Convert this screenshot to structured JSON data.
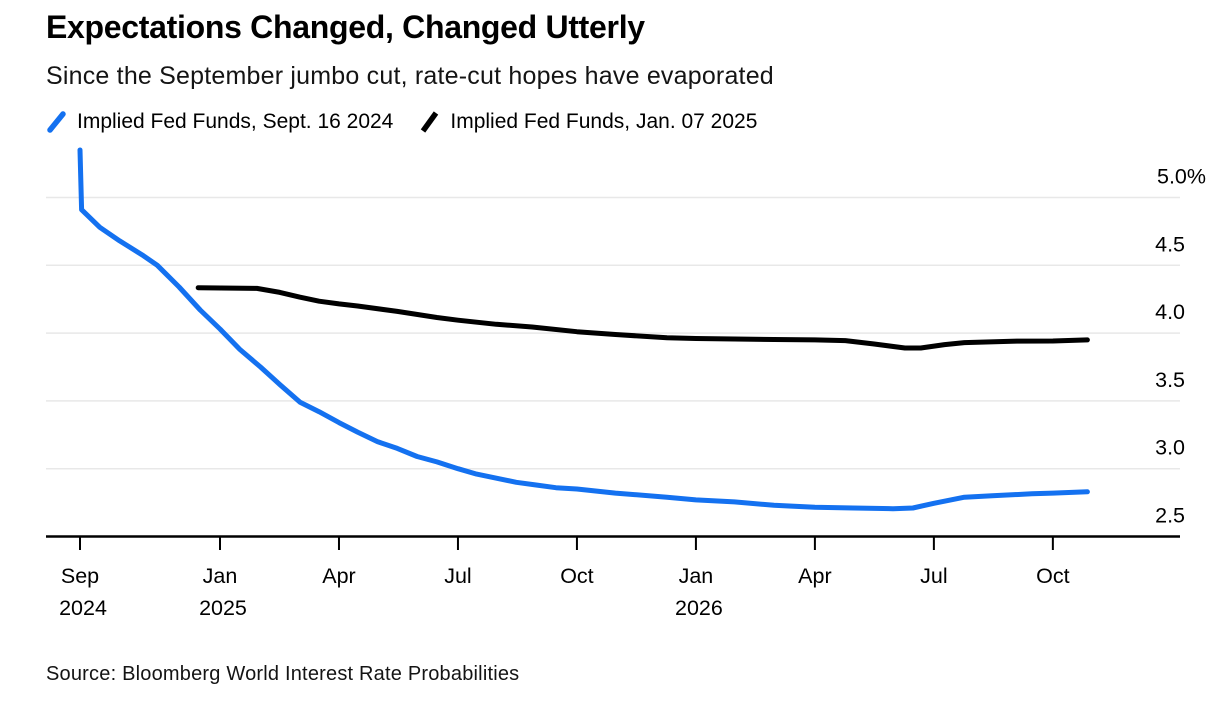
{
  "header": {
    "title": "Expectations Changed, Changed Utterly",
    "subtitle": "Since the September jumbo cut, rate-cut hopes have evaporated"
  },
  "legend": [
    {
      "label": "Implied Fed Funds, Sept. 16 2024",
      "color": "#1471F0"
    },
    {
      "label": "Implied Fed Funds, Jan. 07 2025",
      "color": "#000000"
    }
  ],
  "footer": {
    "source": "Source: Bloomberg World Interest Rate Probabilities"
  },
  "chart_data": {
    "type": "line",
    "title": "Expectations Changed, Changed Utterly",
    "subtitle": "Since the September jumbo cut, rate-cut hopes have evaporated",
    "unit": "%",
    "grid": "horizontal",
    "legend_position": "top",
    "ylim": [
      2.5,
      5.42
    ],
    "x_unit": "months since 2024-09-16",
    "xlim": [
      0,
      27.7
    ],
    "colors": {
      "series1": "#1471F0",
      "series2": "#000000",
      "gridline": "#E8E8E8",
      "axis": "#000000"
    },
    "y_ticks": [
      {
        "v": 5.0,
        "label": "5.0%"
      },
      {
        "v": 4.5,
        "label": "4.5"
      },
      {
        "v": 4.0,
        "label": "4.0"
      },
      {
        "v": 3.5,
        "label": "3.5"
      },
      {
        "v": 3.0,
        "label": "3.0"
      },
      {
        "v": 2.5,
        "label": "2.5"
      }
    ],
    "x_ticks": [
      {
        "t": 0.0,
        "label": "Sep",
        "year": "2024"
      },
      {
        "t": 3.53,
        "label": "Jan",
        "year": "2025"
      },
      {
        "t": 6.53,
        "label": "Apr"
      },
      {
        "t": 9.53,
        "label": "Jul"
      },
      {
        "t": 12.53,
        "label": "Oct"
      },
      {
        "t": 15.53,
        "label": "Jan",
        "year": "2026"
      },
      {
        "t": 18.53,
        "label": "Apr"
      },
      {
        "t": 21.53,
        "label": "Jul"
      },
      {
        "t": 24.53,
        "label": "Oct"
      }
    ],
    "series": [
      {
        "name": "Implied Fed Funds, Sept. 16 2024",
        "color": "#1471F0",
        "points": [
          [
            0.0,
            5.35
          ],
          [
            0.04,
            4.91
          ],
          [
            0.5,
            4.78
          ],
          [
            1.0,
            4.68
          ],
          [
            1.6,
            4.57
          ],
          [
            1.95,
            4.5
          ],
          [
            2.5,
            4.34
          ],
          [
            3.03,
            4.17
          ],
          [
            3.53,
            4.03
          ],
          [
            4.03,
            3.88
          ],
          [
            4.55,
            3.75
          ],
          [
            5.04,
            3.62
          ],
          [
            5.55,
            3.49
          ],
          [
            6.03,
            3.42
          ],
          [
            6.53,
            3.34
          ],
          [
            7.0,
            3.27
          ],
          [
            7.5,
            3.2
          ],
          [
            8.0,
            3.15
          ],
          [
            8.5,
            3.09
          ],
          [
            9.0,
            3.05
          ],
          [
            9.53,
            3.0
          ],
          [
            10.0,
            2.96
          ],
          [
            10.5,
            2.93
          ],
          [
            11.0,
            2.9
          ],
          [
            11.5,
            2.88
          ],
          [
            12.0,
            2.86
          ],
          [
            12.53,
            2.85
          ],
          [
            13.5,
            2.82
          ],
          [
            14.8,
            2.79
          ],
          [
            15.53,
            2.77
          ],
          [
            16.5,
            2.755
          ],
          [
            17.5,
            2.73
          ],
          [
            18.53,
            2.715
          ],
          [
            19.5,
            2.71
          ],
          [
            20.5,
            2.705
          ],
          [
            21.0,
            2.71
          ],
          [
            21.53,
            2.745
          ],
          [
            22.3,
            2.79
          ],
          [
            23.0,
            2.8
          ],
          [
            24.0,
            2.815
          ],
          [
            24.53,
            2.82
          ],
          [
            25.4,
            2.83
          ]
        ]
      },
      {
        "name": "Implied Fed Funds, Jan. 07 2025",
        "color": "#000000",
        "points": [
          [
            2.98,
            4.335
          ],
          [
            4.46,
            4.33
          ],
          [
            5.04,
            4.3
          ],
          [
            5.55,
            4.265
          ],
          [
            6.03,
            4.235
          ],
          [
            6.53,
            4.215
          ],
          [
            7.0,
            4.2
          ],
          [
            8.0,
            4.16
          ],
          [
            9.0,
            4.115
          ],
          [
            9.53,
            4.095
          ],
          [
            10.5,
            4.065
          ],
          [
            11.4,
            4.045
          ],
          [
            12.53,
            4.01
          ],
          [
            13.5,
            3.99
          ],
          [
            14.8,
            3.965
          ],
          [
            15.53,
            3.96
          ],
          [
            17.5,
            3.953
          ],
          [
            18.53,
            3.95
          ],
          [
            19.3,
            3.945
          ],
          [
            20.0,
            3.92
          ],
          [
            20.8,
            3.89
          ],
          [
            21.2,
            3.89
          ],
          [
            21.8,
            3.915
          ],
          [
            22.3,
            3.93
          ],
          [
            23.5,
            3.94
          ],
          [
            24.53,
            3.942
          ],
          [
            25.4,
            3.95
          ]
        ]
      }
    ]
  }
}
